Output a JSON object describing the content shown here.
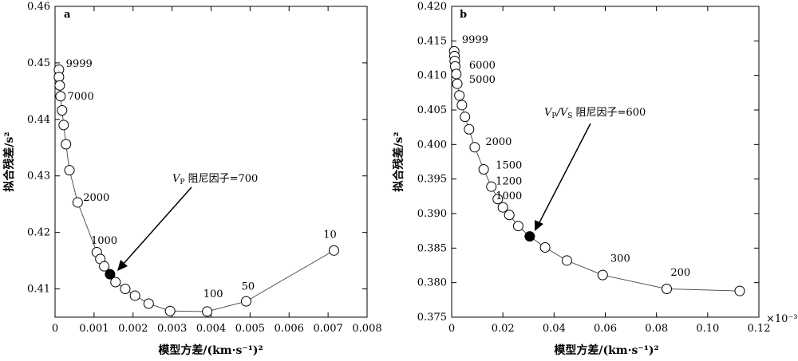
{
  "chart_data": [
    {
      "type": "scatter",
      "panel_label": "a",
      "xlabel": "模型方差/(km·s⁻¹)²",
      "ylabel": "拟合残差/s²",
      "xlim": [
        0,
        0.008
      ],
      "ylim": [
        0.405,
        0.46
      ],
      "xticks": [
        "0",
        "0.001",
        "0.002",
        "0.003",
        "0.004",
        "0.005",
        "0.006",
        "0.007",
        "0.008"
      ],
      "yticks": [
        "0.41",
        "0.42",
        "0.43",
        "0.44",
        "0.45",
        "0.46"
      ],
      "points": [
        {
          "x": 0.0001,
          "y": 0.4488
        },
        {
          "x": 0.0001,
          "y": 0.4475
        },
        {
          "x": 0.00012,
          "y": 0.446
        },
        {
          "x": 0.00014,
          "y": 0.4441
        },
        {
          "x": 0.00018,
          "y": 0.4416
        },
        {
          "x": 0.00022,
          "y": 0.439
        },
        {
          "x": 0.00028,
          "y": 0.4356
        },
        {
          "x": 0.00037,
          "y": 0.431
        },
        {
          "x": 0.00058,
          "y": 0.4253
        },
        {
          "x": 0.00107,
          "y": 0.4165
        },
        {
          "x": 0.00116,
          "y": 0.4153
        },
        {
          "x": 0.00126,
          "y": 0.414
        },
        {
          "x": 0.00141,
          "y": 0.4126,
          "highlight": true
        },
        {
          "x": 0.00155,
          "y": 0.4112
        },
        {
          "x": 0.0018,
          "y": 0.41
        },
        {
          "x": 0.00205,
          "y": 0.4088
        },
        {
          "x": 0.0024,
          "y": 0.4074
        },
        {
          "x": 0.00295,
          "y": 0.4061
        },
        {
          "x": 0.0039,
          "y": 0.406
        },
        {
          "x": 0.0049,
          "y": 0.4078
        },
        {
          "x": 0.00715,
          "y": 0.4168
        }
      ],
      "point_labels": [
        {
          "text": "9999",
          "x": 0.00028,
          "y": 0.4493
        },
        {
          "text": "7000",
          "x": 0.00032,
          "y": 0.4435
        },
        {
          "text": "2000",
          "x": 0.00072,
          "y": 0.4256
        },
        {
          "text": "1000",
          "x": 0.00092,
          "y": 0.418
        },
        {
          "text": "100",
          "x": 0.0038,
          "y": 0.4085
        },
        {
          "text": "50",
          "x": 0.00478,
          "y": 0.4099
        },
        {
          "text": "10",
          "x": 0.00688,
          "y": 0.419
        }
      ],
      "annotation": {
        "text": "V",
        "subscript": "P",
        "rest": " 阻尼因子=700"
      }
    },
    {
      "type": "scatter",
      "panel_label": "b",
      "xlabel": "模型方差/(km·s⁻¹)²",
      "ylabel": "拟合残差/s²",
      "xlim": [
        0,
        0.12
      ],
      "ylim": [
        0.375,
        0.42
      ],
      "xticks": [
        "0",
        "0.02",
        "0.04",
        "0.06",
        "0.08",
        "0.10",
        "0.12"
      ],
      "yticks": [
        "0.375",
        "0.380",
        "0.385",
        "0.390",
        "0.395",
        "0.400",
        "0.405",
        "0.410",
        "0.415",
        "0.420"
      ],
      "x_multiplier": "×10⁻³",
      "points": [
        {
          "x": 0.001,
          "y": 0.4135
        },
        {
          "x": 0.0011,
          "y": 0.4128
        },
        {
          "x": 0.0012,
          "y": 0.4121
        },
        {
          "x": 0.0014,
          "y": 0.4113
        },
        {
          "x": 0.0018,
          "y": 0.4102
        },
        {
          "x": 0.0022,
          "y": 0.4088
        },
        {
          "x": 0.003,
          "y": 0.4071
        },
        {
          "x": 0.004,
          "y": 0.4057
        },
        {
          "x": 0.0052,
          "y": 0.404
        },
        {
          "x": 0.0068,
          "y": 0.4022
        },
        {
          "x": 0.009,
          "y": 0.3996
        },
        {
          "x": 0.0125,
          "y": 0.3964
        },
        {
          "x": 0.0155,
          "y": 0.3939
        },
        {
          "x": 0.018,
          "y": 0.3921
        },
        {
          "x": 0.02,
          "y": 0.3909
        },
        {
          "x": 0.0225,
          "y": 0.3898
        },
        {
          "x": 0.026,
          "y": 0.3882
        },
        {
          "x": 0.0305,
          "y": 0.3867,
          "highlight": true
        },
        {
          "x": 0.0365,
          "y": 0.3851
        },
        {
          "x": 0.045,
          "y": 0.3832
        },
        {
          "x": 0.059,
          "y": 0.3811
        },
        {
          "x": 0.084,
          "y": 0.3791
        },
        {
          "x": 0.1125,
          "y": 0.3788
        }
      ],
      "point_labels": [
        {
          "text": "9999",
          "x": 0.004,
          "y": 0.4147
        },
        {
          "text": "6000",
          "x": 0.0068,
          "y": 0.411
        },
        {
          "text": "5000",
          "x": 0.0068,
          "y": 0.4089
        },
        {
          "text": "2000",
          "x": 0.0132,
          "y": 0.3999
        },
        {
          "text": "1500",
          "x": 0.0172,
          "y": 0.3965
        },
        {
          "text": "1200",
          "x": 0.0172,
          "y": 0.3942
        },
        {
          "text": "1000",
          "x": 0.0172,
          "y": 0.3921
        },
        {
          "text": "300",
          "x": 0.062,
          "y": 0.383
        },
        {
          "text": "200",
          "x": 0.0855,
          "y": 0.381
        }
      ],
      "annotation": {
        "text": "V",
        "subscript": "P",
        "mid": "/V",
        "subscript2": "S",
        "rest": " 阻尼因子=600"
      }
    }
  ]
}
